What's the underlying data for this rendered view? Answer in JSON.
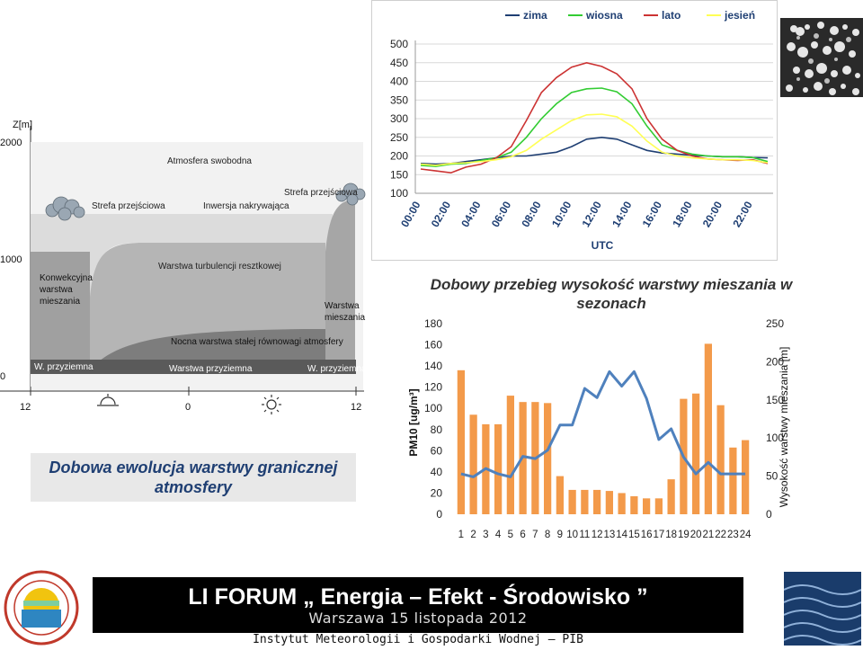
{
  "season_chart": {
    "legend": [
      {
        "name": "zima",
        "color": "#1f3f73"
      },
      {
        "name": "wiosna",
        "color": "#33cc33"
      },
      {
        "name": "lato",
        "color": "#cc3333"
      },
      {
        "name": "jesień",
        "color": "#ffff55"
      }
    ],
    "xlabel": "UTC"
  },
  "diagram": {
    "z_label": "Z[m]",
    "y_ticks": [
      "2000",
      "1000",
      "0"
    ],
    "x_ticks": [
      "12",
      "0",
      "12"
    ],
    "labels": {
      "free_atmosphere": "Atmosfera swobodna",
      "transition_left": "Strefa przejściowa",
      "capping_inversion": "Inwersja nakrywająca",
      "transition_right": "Strefa przejściowa",
      "residual_layer": "Warstwa turbulencji resztkowej",
      "convective_1": "Konwekcyjna",
      "convective_2": "warstwa",
      "convective_3": "mieszania",
      "mixing_1": "Warstwa",
      "mixing_2": "mieszania",
      "stable_layer": "Nocna warstwa stałej równowagi atmosfery",
      "surface_left": "W. przyziemna",
      "surface_mid": "Warstwa przyziemna",
      "surface_right": "W. przyziemna"
    },
    "caption_line1": "Dobowa ewolucja warstwy granicznej",
    "caption_line2": "atmosfery"
  },
  "main_title_line1": "Dobowy przebieg wysokość warstwy mieszania w",
  "main_title_line2": "sezonach",
  "footer": {
    "line1": "LI FORUM „ Energia – Efekt - Środowisko ”",
    "line2": "Warszawa 15 listopada 2012",
    "institute": "Instytut Meteorologii i Gospodarki Wodnej – PIB"
  },
  "chart_data": [
    {
      "type": "line",
      "x": [
        "00:00",
        "01:00",
        "02:00",
        "03:00",
        "04:00",
        "05:00",
        "06:00",
        "07:00",
        "08:00",
        "09:00",
        "10:00",
        "11:00",
        "12:00",
        "13:00",
        "14:00",
        "15:00",
        "16:00",
        "17:00",
        "18:00",
        "19:00",
        "20:00",
        "21:00",
        "22:00",
        "23:00"
      ],
      "x_tick_labels": [
        "00:00",
        "02:00",
        "04:00",
        "06:00",
        "08:00",
        "10:00",
        "12:00",
        "14:00",
        "16:00",
        "18:00",
        "20:00",
        "22:00"
      ],
      "xlabel": "UTC",
      "ylim": [
        100,
        500
      ],
      "y_ticks": [
        100,
        150,
        200,
        250,
        300,
        350,
        400,
        450,
        500
      ],
      "legend_position": "top",
      "series": [
        {
          "name": "zima",
          "color": "#1f3f73",
          "values": [
            180,
            178,
            180,
            185,
            190,
            195,
            200,
            200,
            205,
            210,
            225,
            245,
            250,
            245,
            230,
            215,
            208,
            205,
            202,
            200,
            198,
            198,
            196,
            195
          ]
        },
        {
          "name": "wiosna",
          "color": "#33cc33",
          "values": [
            175,
            172,
            178,
            180,
            188,
            195,
            210,
            250,
            300,
            340,
            370,
            380,
            382,
            372,
            340,
            280,
            230,
            215,
            205,
            200,
            198,
            198,
            196,
            185
          ]
        },
        {
          "name": "lato",
          "color": "#cc3333",
          "values": [
            165,
            160,
            155,
            170,
            178,
            195,
            225,
            295,
            370,
            410,
            438,
            450,
            440,
            420,
            380,
            300,
            245,
            215,
            200,
            192,
            190,
            188,
            190,
            180
          ]
        },
        {
          "name": "jesień",
          "color": "#ffff55",
          "values": [
            178,
            175,
            180,
            182,
            185,
            190,
            198,
            215,
            245,
            270,
            295,
            310,
            312,
            305,
            280,
            240,
            210,
            200,
            195,
            192,
            190,
            190,
            188,
            182
          ]
        }
      ]
    },
    {
      "type": "bar",
      "categories": [
        "1",
        "2",
        "3",
        "4",
        "5",
        "6",
        "7",
        "8",
        "9",
        "10",
        "11",
        "12",
        "13",
        "14",
        "15",
        "16",
        "17",
        "18",
        "19",
        "20",
        "21",
        "22",
        "23",
        "24"
      ],
      "ylabel": "PM10 [ug/m³]",
      "ylim": [
        0,
        180
      ],
      "y_ticks": [
        0,
        20,
        40,
        60,
        80,
        100,
        120,
        140,
        160,
        180
      ],
      "y2label": "Wysokość warstwy mieszania [m]",
      "y2lim": [
        0,
        250
      ],
      "y2_ticks": [
        0,
        50,
        100,
        150,
        200,
        250
      ],
      "bar_color": "#f39a4a",
      "line_color": "#4f81bd",
      "series": [
        {
          "axis": "left",
          "type": "bar",
          "values": [
            136,
            94,
            85,
            85,
            112,
            106,
            106,
            105,
            36,
            23,
            23,
            23,
            22,
            20,
            17,
            15,
            15,
            33,
            109,
            114,
            161,
            103,
            63,
            70
          ]
        },
        {
          "axis": "right",
          "type": "line",
          "values": [
            53,
            49,
            60,
            53,
            49,
            76,
            73,
            84,
            117,
            117,
            165,
            153,
            187,
            168,
            187,
            152,
            98,
            112,
            75,
            53,
            68,
            53,
            53,
            53
          ]
        }
      ]
    }
  ]
}
